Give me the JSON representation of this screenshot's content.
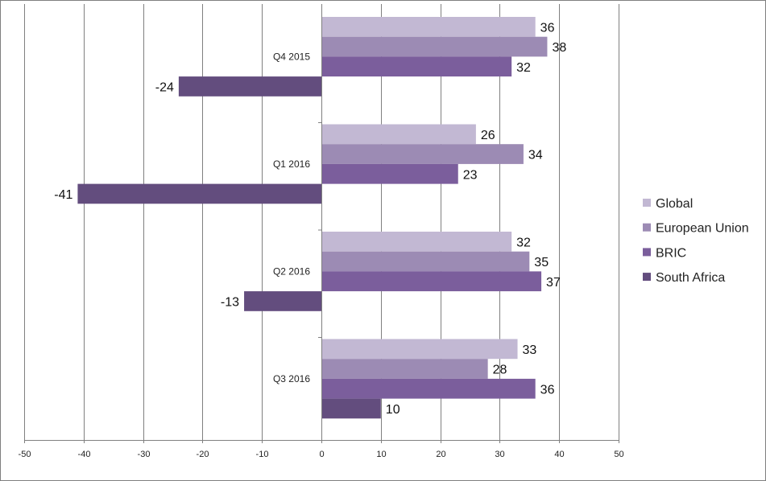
{
  "chart_data": {
    "type": "bar",
    "orientation": "horizontal",
    "categories": [
      "Q4 2015",
      "Q1 2016",
      "Q2 2016",
      "Q3 2016"
    ],
    "series": [
      {
        "name": "Global",
        "color": "#c2b8d3",
        "values": [
          36,
          26,
          32,
          33
        ]
      },
      {
        "name": "European Union",
        "color": "#9c8bb4",
        "values": [
          38,
          34,
          35,
          28
        ]
      },
      {
        "name": "BRIC",
        "color": "#7b5e9c",
        "values": [
          32,
          23,
          37,
          36
        ]
      },
      {
        "name": "South Africa",
        "color": "#634d7e",
        "values": [
          -24,
          -41,
          -13,
          10
        ]
      }
    ],
    "x_ticks": [
      "-50",
      "-40",
      "-30",
      "-20",
      "-10",
      "0",
      "10",
      "20",
      "30",
      "40",
      "50"
    ],
    "xlim": [
      -50,
      50
    ],
    "grid": "vertical major gridlines",
    "legend_position": "right",
    "data_labels": true
  }
}
